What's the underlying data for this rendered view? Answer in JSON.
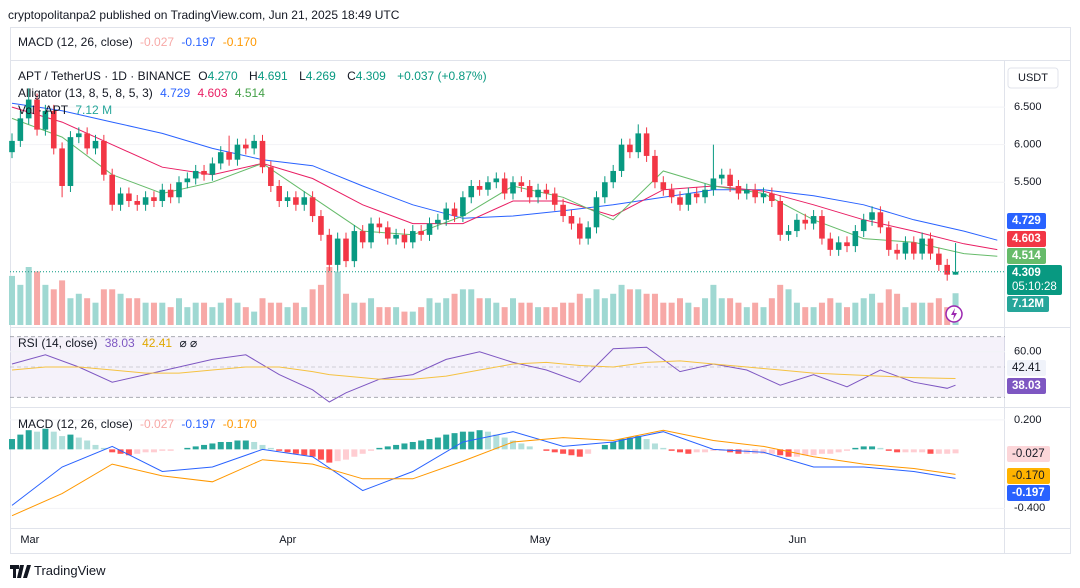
{
  "header": {
    "publisher": "cryptopolitanpa2 published on TradingView.com, Jun 21, 2025 18:49 UTC",
    "currency": "USDT",
    "logo": "TradingView"
  },
  "chart_data": [
    {
      "type": "candlestick",
      "title": "APT / TetherUS · 1D · BINANCE",
      "ohlc_legend": [
        [
          "O",
          "4.270"
        ],
        [
          "H",
          "4.691"
        ],
        [
          "L",
          "4.269"
        ],
        [
          "C",
          "4.309"
        ]
      ],
      "change": "+0.037 (+0.87%)",
      "countdown": "05:10:28",
      "up_color": "#089981",
      "down_color": "#f23645",
      "xticks": [
        {
          "value": 1,
          "label": "Mar"
        },
        {
          "value": 32,
          "label": "Apr"
        },
        {
          "value": 62,
          "label": "May"
        },
        {
          "value": 93,
          "label": "Jun"
        }
      ],
      "ylim": [
        3.6,
        7.1
      ],
      "yticks": [
        {
          "value": 6.5,
          "label": "6.500"
        },
        {
          "value": 6,
          "label": "6.000"
        },
        {
          "value": 5.5,
          "label": "5.500"
        }
      ],
      "open": [
        5.9,
        6.05,
        6.35,
        6.6,
        6.2,
        6.45,
        5.95,
        5.45,
        6.1,
        6.15,
        5.95,
        6.05,
        5.6,
        5.2,
        5.35,
        5.25,
        5.2,
        5.3,
        5.25,
        5.4,
        5.3,
        5.5,
        5.55,
        5.65,
        5.6,
        5.75,
        5.9,
        5.8,
        6.0,
        5.95,
        6.05,
        5.7,
        5.45,
        5.25,
        5.3,
        5.2,
        5.3,
        5.05,
        4.8,
        4.4,
        4.75,
        4.45,
        4.85,
        4.7,
        4.95,
        4.9,
        4.75,
        4.8,
        4.7,
        4.85,
        4.8,
        4.95,
        5.0,
        5.15,
        5.05,
        5.3,
        5.45,
        5.4,
        5.5,
        5.55,
        5.35,
        5.5,
        5.45,
        5.3,
        5.4,
        5.35,
        5.2,
        5.05,
        4.95,
        4.75,
        4.9,
        5.3,
        5.5,
        5.65,
        6.0,
        5.9,
        6.15,
        5.85,
        5.5,
        5.4,
        5.3,
        5.2,
        5.35,
        5.3,
        5.4,
        5.55,
        5.6,
        5.45,
        5.35,
        5.4,
        5.3,
        5.35,
        5.25,
        4.8,
        4.85,
        5.0,
        4.95,
        5.05,
        4.75,
        4.6,
        4.7,
        4.65,
        4.85,
        5.0,
        5.1,
        4.9,
        4.6,
        4.55,
        4.7,
        4.55,
        4.75,
        4.55,
        4.4,
        4.27
      ],
      "high": [
        6.15,
        6.45,
        6.75,
        6.68,
        6.53,
        6.53,
        6.03,
        6.18,
        6.23,
        6.23,
        6.13,
        6.13,
        5.68,
        5.43,
        5.43,
        5.33,
        5.38,
        5.38,
        5.48,
        5.48,
        5.58,
        5.63,
        5.73,
        5.73,
        5.83,
        5.98,
        6.12,
        6.08,
        6.08,
        6.13,
        6.13,
        5.78,
        5.53,
        5.38,
        5.38,
        5.38,
        5.38,
        5.13,
        4.88,
        4.83,
        4.83,
        4.93,
        4.93,
        5.03,
        5.03,
        4.98,
        4.88,
        4.88,
        4.93,
        4.93,
        5.03,
        5.08,
        5.23,
        5.23,
        5.38,
        5.53,
        5.53,
        5.58,
        5.63,
        5.63,
        5.58,
        5.58,
        5.53,
        5.48,
        5.48,
        5.43,
        5.28,
        5.13,
        5.03,
        4.98,
        5.38,
        5.58,
        5.73,
        6.08,
        6.08,
        6.27,
        6.23,
        5.93,
        5.58,
        5.48,
        5.38,
        5.43,
        5.43,
        5.48,
        6.0,
        5.68,
        5.68,
        5.53,
        5.48,
        5.48,
        5.43,
        5.43,
        5.33,
        4.93,
        5.08,
        5.08,
        5.13,
        5.13,
        4.83,
        4.78,
        4.78,
        4.93,
        5.08,
        5.18,
        5.18,
        4.98,
        4.68,
        4.78,
        4.78,
        4.83,
        4.83,
        4.63,
        4.48,
        4.691
      ],
      "low": [
        5.82,
        5.97,
        6.27,
        6.12,
        6.12,
        5.87,
        5.3,
        5.37,
        6.02,
        5.87,
        5.87,
        5.52,
        5.12,
        5.12,
        5.17,
        5.12,
        5.12,
        5.17,
        5.17,
        5.22,
        5.22,
        5.42,
        5.47,
        5.52,
        5.52,
        5.67,
        5.72,
        5.72,
        5.87,
        5.87,
        5.62,
        5.37,
        5.17,
        5.17,
        5.12,
        5.12,
        4.97,
        4.72,
        4.32,
        4.32,
        4.37,
        4.37,
        4.62,
        4.62,
        4.82,
        4.67,
        4.67,
        4.62,
        4.62,
        4.72,
        4.72,
        4.87,
        4.92,
        4.97,
        4.97,
        5.22,
        5.32,
        5.32,
        5.42,
        5.27,
        5.27,
        5.37,
        5.22,
        5.22,
        5.27,
        5.12,
        4.97,
        4.87,
        4.67,
        4.67,
        4.82,
        5.22,
        5.42,
        5.57,
        5.82,
        5.82,
        5.77,
        5.42,
        5.32,
        5.22,
        5.12,
        5.12,
        5.22,
        5.22,
        5.32,
        5.47,
        5.37,
        5.27,
        5.27,
        5.22,
        5.22,
        5.17,
        4.72,
        4.72,
        4.77,
        4.87,
        4.87,
        4.67,
        4.52,
        4.52,
        4.57,
        4.57,
        4.77,
        4.92,
        4.82,
        4.52,
        4.47,
        4.47,
        4.47,
        4.47,
        4.47,
        4.32,
        4.19,
        4.269
      ],
      "close": [
        6.05,
        6.35,
        6.6,
        6.2,
        6.45,
        5.95,
        5.45,
        6.1,
        6.15,
        5.95,
        6.05,
        5.6,
        5.2,
        5.35,
        5.25,
        5.2,
        5.3,
        5.25,
        5.4,
        5.3,
        5.5,
        5.55,
        5.65,
        5.6,
        5.75,
        5.9,
        5.8,
        6.0,
        5.95,
        6.05,
        5.7,
        5.45,
        5.25,
        5.3,
        5.2,
        5.3,
        5.05,
        4.8,
        4.4,
        4.75,
        4.45,
        4.85,
        4.7,
        4.95,
        4.9,
        4.75,
        4.8,
        4.7,
        4.85,
        4.8,
        4.95,
        5.0,
        5.15,
        5.05,
        5.3,
        5.45,
        5.4,
        5.5,
        5.55,
        5.35,
        5.5,
        5.45,
        5.3,
        5.4,
        5.35,
        5.2,
        5.05,
        4.95,
        4.75,
        4.9,
        5.3,
        5.5,
        5.65,
        6.0,
        5.9,
        6.15,
        5.85,
        5.5,
        5.4,
        5.3,
        5.2,
        5.35,
        5.3,
        5.4,
        5.55,
        5.6,
        5.45,
        5.35,
        5.4,
        5.3,
        5.35,
        5.25,
        4.8,
        4.85,
        5.0,
        4.95,
        5.05,
        4.75,
        4.6,
        4.7,
        4.65,
        4.85,
        5.0,
        5.1,
        4.9,
        4.6,
        4.55,
        4.7,
        4.55,
        4.75,
        4.55,
        4.4,
        4.27,
        4.309
      ],
      "alligator": {
        "label": "Alligator (13, 8, 5, 8, 5, 3)",
        "series": [
          {
            "color": "#2962ff",
            "x": [
              0,
              6,
              12,
              18,
              24,
              30,
              36,
              42,
              48,
              54,
              60,
              66,
              72,
              78,
              84,
              90,
              96,
              102,
              108,
              114,
              118
            ],
            "values": [
              6.55,
              6.45,
              6.3,
              6.15,
              5.95,
              5.8,
              5.72,
              5.45,
              5.2,
              5.02,
              5.05,
              5.12,
              5.2,
              5.3,
              5.4,
              5.4,
              5.32,
              5.2,
              5.0,
              4.85,
              4.729
            ]
          },
          {
            "color": "#e91e63",
            "x": [
              0,
              6,
              12,
              18,
              24,
              30,
              36,
              42,
              48,
              54,
              60,
              66,
              72,
              78,
              84,
              90,
              96,
              102,
              108,
              114,
              118
            ],
            "values": [
              6.5,
              6.3,
              6.0,
              5.7,
              5.6,
              5.75,
              5.55,
              5.2,
              4.95,
              4.95,
              5.25,
              5.25,
              5.05,
              5.4,
              5.45,
              5.38,
              5.2,
              5.0,
              4.85,
              4.68,
              4.603
            ]
          },
          {
            "color": "#66bb6a",
            "x": [
              0,
              6,
              12,
              18,
              24,
              30,
              36,
              42,
              48,
              54,
              60,
              66,
              72,
              78,
              84,
              90,
              96,
              102,
              108,
              114,
              118
            ],
            "values": [
              6.35,
              6.1,
              5.6,
              5.35,
              5.5,
              5.75,
              5.3,
              4.85,
              4.8,
              5.05,
              5.45,
              5.3,
              5.0,
              5.65,
              5.45,
              5.35,
              5.0,
              4.75,
              4.7,
              4.55,
              4.514
            ]
          }
        ]
      },
      "volume": {
        "label": "Vol · APT",
        "last_label": "7.12 M",
        "badge": "7.12M",
        "up_color": "#9fd8d2",
        "down_color": "#f7a9a7",
        "values": [
          11,
          9,
          13,
          12,
          9,
          8,
          10,
          6,
          7,
          6,
          5,
          8,
          8,
          7,
          6,
          6,
          5,
          5,
          5,
          4,
          6,
          4,
          5,
          5,
          4,
          5,
          6,
          5,
          4,
          3,
          6,
          5,
          5,
          4,
          5,
          4,
          8,
          9,
          13,
          12,
          7,
          5,
          5,
          6,
          4,
          4,
          4,
          3,
          3,
          4,
          6,
          5,
          6,
          7,
          8,
          8,
          6,
          6,
          5,
          4,
          6,
          5,
          5,
          4,
          4,
          4,
          5,
          5,
          7,
          6,
          8,
          6,
          7,
          9,
          8,
          8,
          7,
          7,
          5,
          5,
          6,
          5,
          4,
          6,
          9,
          6,
          6,
          5,
          4,
          5,
          4,
          6,
          9,
          8,
          5,
          4,
          4,
          5,
          6,
          5,
          4,
          5,
          6,
          7,
          5,
          8,
          7,
          4,
          5,
          5,
          5,
          6,
          4,
          7.12
        ]
      }
    },
    {
      "type": "line",
      "title": "RSI (14, close)",
      "legend_extra": "⌀ ⌀",
      "ylim": [
        25,
        75
      ],
      "yticks": [
        {
          "value": 60,
          "label": "60.00"
        }
      ],
      "bands": [
        30,
        50,
        70
      ],
      "band_color": "#7e57c2",
      "x": [
        0,
        4,
        8,
        12,
        16,
        20,
        24,
        28,
        32,
        36,
        38,
        40,
        44,
        48,
        52,
        56,
        60,
        64,
        68,
        72,
        76,
        80,
        84,
        88,
        92,
        96,
        100,
        104,
        108,
        112,
        113
      ],
      "series": [
        {
          "color": "#7e57c2",
          "values": [
            52,
            58,
            50,
            40,
            45,
            50,
            55,
            58,
            45,
            35,
            27,
            33,
            42,
            45,
            55,
            60,
            53,
            48,
            40,
            62,
            63,
            47,
            52,
            48,
            38,
            45,
            37,
            48,
            40,
            36,
            38.03
          ]
        },
        {
          "color": "#f5c242",
          "values": [
            48,
            50,
            50,
            48,
            46,
            46,
            48,
            50,
            50,
            47,
            45,
            44,
            42,
            42,
            44,
            48,
            52,
            53,
            51,
            50,
            53,
            54,
            52,
            50,
            48,
            46,
            45,
            44,
            43,
            42.5,
            42.41
          ]
        }
      ]
    },
    {
      "type": "macd",
      "title": "MACD (12, 26, close)",
      "ylim": [
        -0.52,
        0.267
      ],
      "yticks": [
        {
          "value": 0.2,
          "label": "0.200"
        },
        {
          "value": -0.4,
          "label": "-0.400"
        }
      ],
      "x": [
        0,
        6,
        12,
        18,
        24,
        30,
        36,
        42,
        48,
        54,
        60,
        66,
        72,
        78,
        84,
        90,
        96,
        102,
        108,
        113
      ],
      "series": [
        {
          "color": "#2962ff",
          "values": [
            -0.38,
            -0.12,
            0.02,
            -0.15,
            -0.12,
            0.0,
            -0.05,
            -0.28,
            -0.15,
            0.05,
            0.12,
            0.02,
            0.05,
            0.12,
            0.0,
            -0.02,
            -0.12,
            -0.12,
            -0.15,
            -0.197
          ]
        },
        {
          "color": "#ff9800",
          "values": [
            -0.45,
            -0.3,
            -0.1,
            -0.18,
            -0.22,
            -0.07,
            -0.1,
            -0.2,
            -0.2,
            -0.08,
            0.05,
            0.08,
            0.06,
            0.13,
            0.06,
            0.02,
            -0.05,
            -0.1,
            -0.13,
            -0.17
          ],
          "last_label": "-0.170"
        }
      ],
      "histogram": {
        "colors": [
          "#26a69a",
          "#b2dfdb",
          "#ffcdd2",
          "#ff5252"
        ],
        "values": [
          0.07,
          0.1,
          0.13,
          0.12,
          0.14,
          0.12,
          0.09,
          0.1,
          0.08,
          0.06,
          0.03,
          0.01,
          -0.02,
          -0.03,
          -0.04,
          -0.03,
          -0.02,
          -0.02,
          -0.01,
          -0.01,
          0.0,
          0.01,
          0.02,
          0.03,
          0.04,
          0.05,
          0.05,
          0.06,
          0.06,
          0.05,
          0.03,
          0.01,
          -0.01,
          -0.02,
          -0.03,
          -0.04,
          -0.05,
          -0.07,
          -0.09,
          -0.08,
          -0.07,
          -0.05,
          -0.03,
          -0.01,
          0.01,
          0.02,
          0.03,
          0.04,
          0.05,
          0.06,
          0.07,
          0.08,
          0.1,
          0.11,
          0.12,
          0.12,
          0.13,
          0.12,
          0.1,
          0.08,
          0.06,
          0.04,
          0.02,
          0.0,
          -0.01,
          -0.02,
          -0.03,
          -0.04,
          -0.05,
          -0.03,
          0.0,
          0.03,
          0.05,
          0.07,
          0.08,
          0.09,
          0.07,
          0.04,
          0.01,
          -0.01,
          -0.02,
          -0.03,
          -0.02,
          -0.02,
          -0.01,
          -0.01,
          -0.02,
          -0.03,
          -0.03,
          -0.03,
          -0.03,
          -0.03,
          -0.04,
          -0.05,
          -0.05,
          -0.04,
          -0.04,
          -0.03,
          -0.03,
          -0.02,
          -0.01,
          0.01,
          0.02,
          0.02,
          0.01,
          -0.01,
          -0.02,
          -0.02,
          -0.02,
          -0.02,
          -0.03,
          -0.03,
          -0.03,
          -0.027
        ]
      }
    }
  ]
}
